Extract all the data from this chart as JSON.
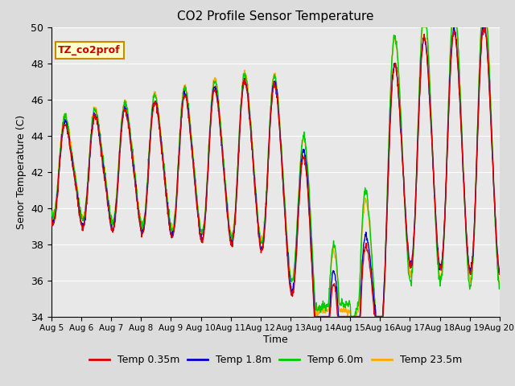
{
  "title": "CO2 Profile Sensor Temperature",
  "ylabel": "Senor Temperature (C)",
  "xlabel": "Time",
  "annotation": "TZ_co2prof",
  "annotation_color": "#cc0000",
  "annotation_bg": "#ffffcc",
  "annotation_border": "#cc8800",
  "ylim": [
    34,
    50
  ],
  "series_colors": [
    "#dd0000",
    "#0000cc",
    "#00cc00",
    "#ffaa00"
  ],
  "series_labels": [
    "Temp 0.35m",
    "Temp 1.8m",
    "Temp 6.0m",
    "Temp 23.5m"
  ],
  "xtick_labels": [
    "Aug 5",
    "Aug 6",
    "Aug 7",
    "Aug 8",
    "Aug 9",
    "Aug 10",
    "Aug 11",
    "Aug 12",
    "Aug 13",
    "Aug 14",
    "Aug 15",
    "Aug 16",
    "Aug 17",
    "Aug 18",
    "Aug 19",
    "Aug 20"
  ],
  "bg_color": "#e8e8e8",
  "grid_color": "#ffffff",
  "n_days": 15,
  "points_per_day": 96
}
